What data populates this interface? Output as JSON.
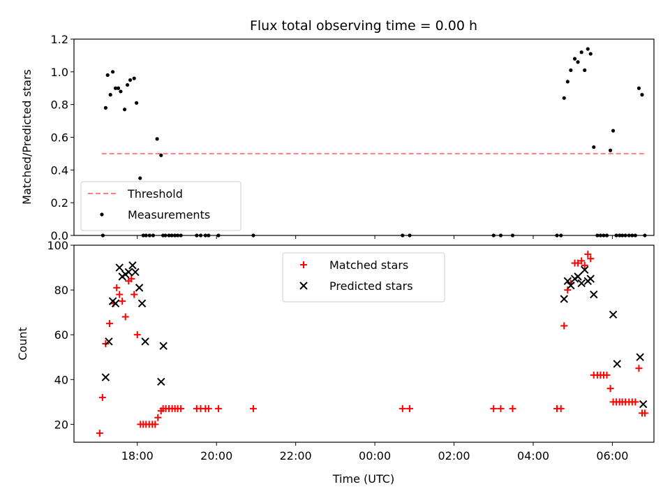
{
  "chart_data": [
    {
      "type": "scatter",
      "title": "Flux total observing time = 0.00 h",
      "xlabel": "",
      "ylabel": "Matched/Predicted stars",
      "ylim": [
        0,
        1.2
      ],
      "yticks": [
        0,
        0.2,
        0.4,
        0.6,
        0.8,
        1.0,
        1.2
      ],
      "ytick_labels": [
        "0.0",
        "0.2",
        "0.4",
        "0.6",
        "0.8",
        "1.0",
        "1.2"
      ],
      "xlim_hours": [
        16.4,
        31.05
      ],
      "legend": {
        "placement": "lower-left",
        "entries": [
          {
            "label": "Threshold",
            "style": "dashed-line",
            "color": "#ff8080"
          },
          {
            "label": "Measurements",
            "style": "dot",
            "color": "#000000"
          }
        ]
      },
      "series": [
        {
          "name": "Threshold",
          "kind": "line",
          "color": "#ff8080",
          "x": [
            17.1,
            30.8
          ],
          "y": [
            0.5,
            0.5
          ]
        },
        {
          "name": "Measurements",
          "kind": "dot",
          "color": "#000000",
          "x": [
            17.13,
            17.2,
            17.25,
            17.32,
            17.38,
            17.45,
            17.52,
            17.58,
            17.68,
            17.75,
            17.82,
            17.92,
            17.98,
            18.07,
            18.15,
            18.22,
            18.31,
            18.4,
            18.5,
            18.6,
            18.65,
            18.71,
            18.8,
            18.87,
            18.95,
            19.02,
            19.1,
            19.5,
            19.6,
            19.72,
            19.8,
            20.05,
            20.93,
            24.7,
            24.88,
            27.0,
            27.18,
            27.48,
            28.6,
            28.7,
            28.78,
            28.87,
            28.95,
            29.05,
            29.13,
            29.22,
            29.3,
            29.38,
            29.45,
            29.53,
            29.62,
            29.7,
            29.78,
            29.86,
            29.95,
            30.02,
            30.1,
            30.18,
            30.25,
            30.33,
            30.42,
            30.5,
            30.58,
            30.67,
            30.75,
            30.82
          ],
          "y": [
            0.0,
            0.78,
            0.98,
            0.86,
            1.0,
            0.9,
            0.9,
            0.88,
            0.77,
            0.92,
            0.95,
            0.96,
            0.81,
            0.35,
            0.0,
            0.0,
            0.0,
            0.0,
            0.59,
            0.49,
            0.0,
            0.0,
            0.0,
            0.0,
            0.0,
            0.0,
            0.0,
            0.0,
            0.0,
            0.0,
            0.0,
            0.0,
            0.0,
            0.0,
            0.0,
            0.0,
            0.0,
            0.0,
            0.0,
            0.0,
            0.84,
            0.94,
            1.01,
            1.08,
            1.06,
            1.12,
            1.01,
            1.14,
            1.11,
            0.54,
            0.0,
            0.0,
            0.0,
            0.0,
            0.52,
            0.64,
            0.0,
            0.0,
            0.0,
            0.0,
            0.0,
            0.0,
            0.0,
            0.9,
            0.86,
            0.0
          ]
        }
      ]
    },
    {
      "type": "scatter",
      "title": "",
      "xlabel": "Time (UTC)",
      "ylabel": "Count",
      "ylim": [
        12,
        100
      ],
      "yticks": [
        20,
        40,
        60,
        80,
        100
      ],
      "ytick_labels": [
        "20",
        "40",
        "60",
        "80",
        "100"
      ],
      "xlim_hours": [
        16.4,
        31.05
      ],
      "xtick_hours": [
        18,
        20,
        22,
        24,
        26,
        28,
        30
      ],
      "xtick_labels": [
        "18:00",
        "20:00",
        "22:00",
        "00:00",
        "02:00",
        "04:00",
        "06:00"
      ],
      "legend": {
        "placement": "upper-center",
        "entries": [
          {
            "label": "Matched stars",
            "style": "plus",
            "color": "#ff0000"
          },
          {
            "label": "Predicted stars",
            "style": "x",
            "color": "#000000"
          }
        ]
      },
      "series": [
        {
          "name": "Matched stars",
          "kind": "plus",
          "color": "#ff0000",
          "x": [
            17.05,
            17.12,
            17.2,
            17.3,
            17.4,
            17.48,
            17.55,
            17.62,
            17.7,
            17.78,
            17.85,
            17.92,
            18.0,
            18.08,
            18.15,
            18.22,
            18.3,
            18.38,
            18.45,
            18.52,
            18.6,
            18.65,
            18.72,
            18.8,
            18.88,
            18.95,
            19.02,
            19.1,
            19.5,
            19.6,
            19.72,
            19.8,
            20.05,
            20.93,
            24.7,
            24.88,
            27.0,
            27.18,
            27.48,
            28.6,
            28.7,
            28.78,
            28.87,
            28.95,
            29.05,
            29.13,
            29.22,
            29.3,
            29.38,
            29.45,
            29.53,
            29.62,
            29.7,
            29.78,
            29.86,
            29.95,
            30.02,
            30.1,
            30.18,
            30.25,
            30.33,
            30.42,
            30.5,
            30.58,
            30.67,
            30.75,
            30.82
          ],
          "y": [
            16,
            32,
            56,
            65,
            74,
            81,
            78,
            75,
            68,
            84,
            85,
            78,
            60,
            20,
            20,
            20,
            20,
            20,
            20,
            23,
            26,
            27,
            27,
            27,
            27,
            27,
            27,
            27,
            27,
            27,
            27,
            27,
            27,
            27,
            27,
            27,
            27,
            27,
            27,
            27,
            27,
            64,
            80,
            83,
            92,
            92,
            93,
            91,
            96,
            94,
            42,
            42,
            42,
            42,
            42,
            36,
            30,
            30,
            30,
            30,
            30,
            30,
            30,
            30,
            45,
            25,
            25
          ]
        },
        {
          "name": "Predicted stars",
          "kind": "x",
          "color": "#000000",
          "x": [
            17.2,
            17.28,
            17.38,
            17.45,
            17.55,
            17.62,
            17.7,
            17.78,
            17.88,
            17.95,
            18.05,
            18.12,
            18.2,
            18.6,
            18.66,
            28.78,
            28.87,
            28.95,
            29.05,
            29.13,
            29.22,
            29.3,
            29.38,
            29.45,
            29.53,
            30.02,
            30.12,
            30.7,
            30.78
          ],
          "y": [
            41,
            57,
            75,
            74,
            90,
            86,
            87,
            88,
            91,
            88,
            81,
            74,
            57,
            39,
            55,
            76,
            84,
            82,
            85,
            86,
            83,
            89,
            84,
            85,
            78,
            69,
            47,
            50,
            29
          ]
        }
      ]
    }
  ]
}
